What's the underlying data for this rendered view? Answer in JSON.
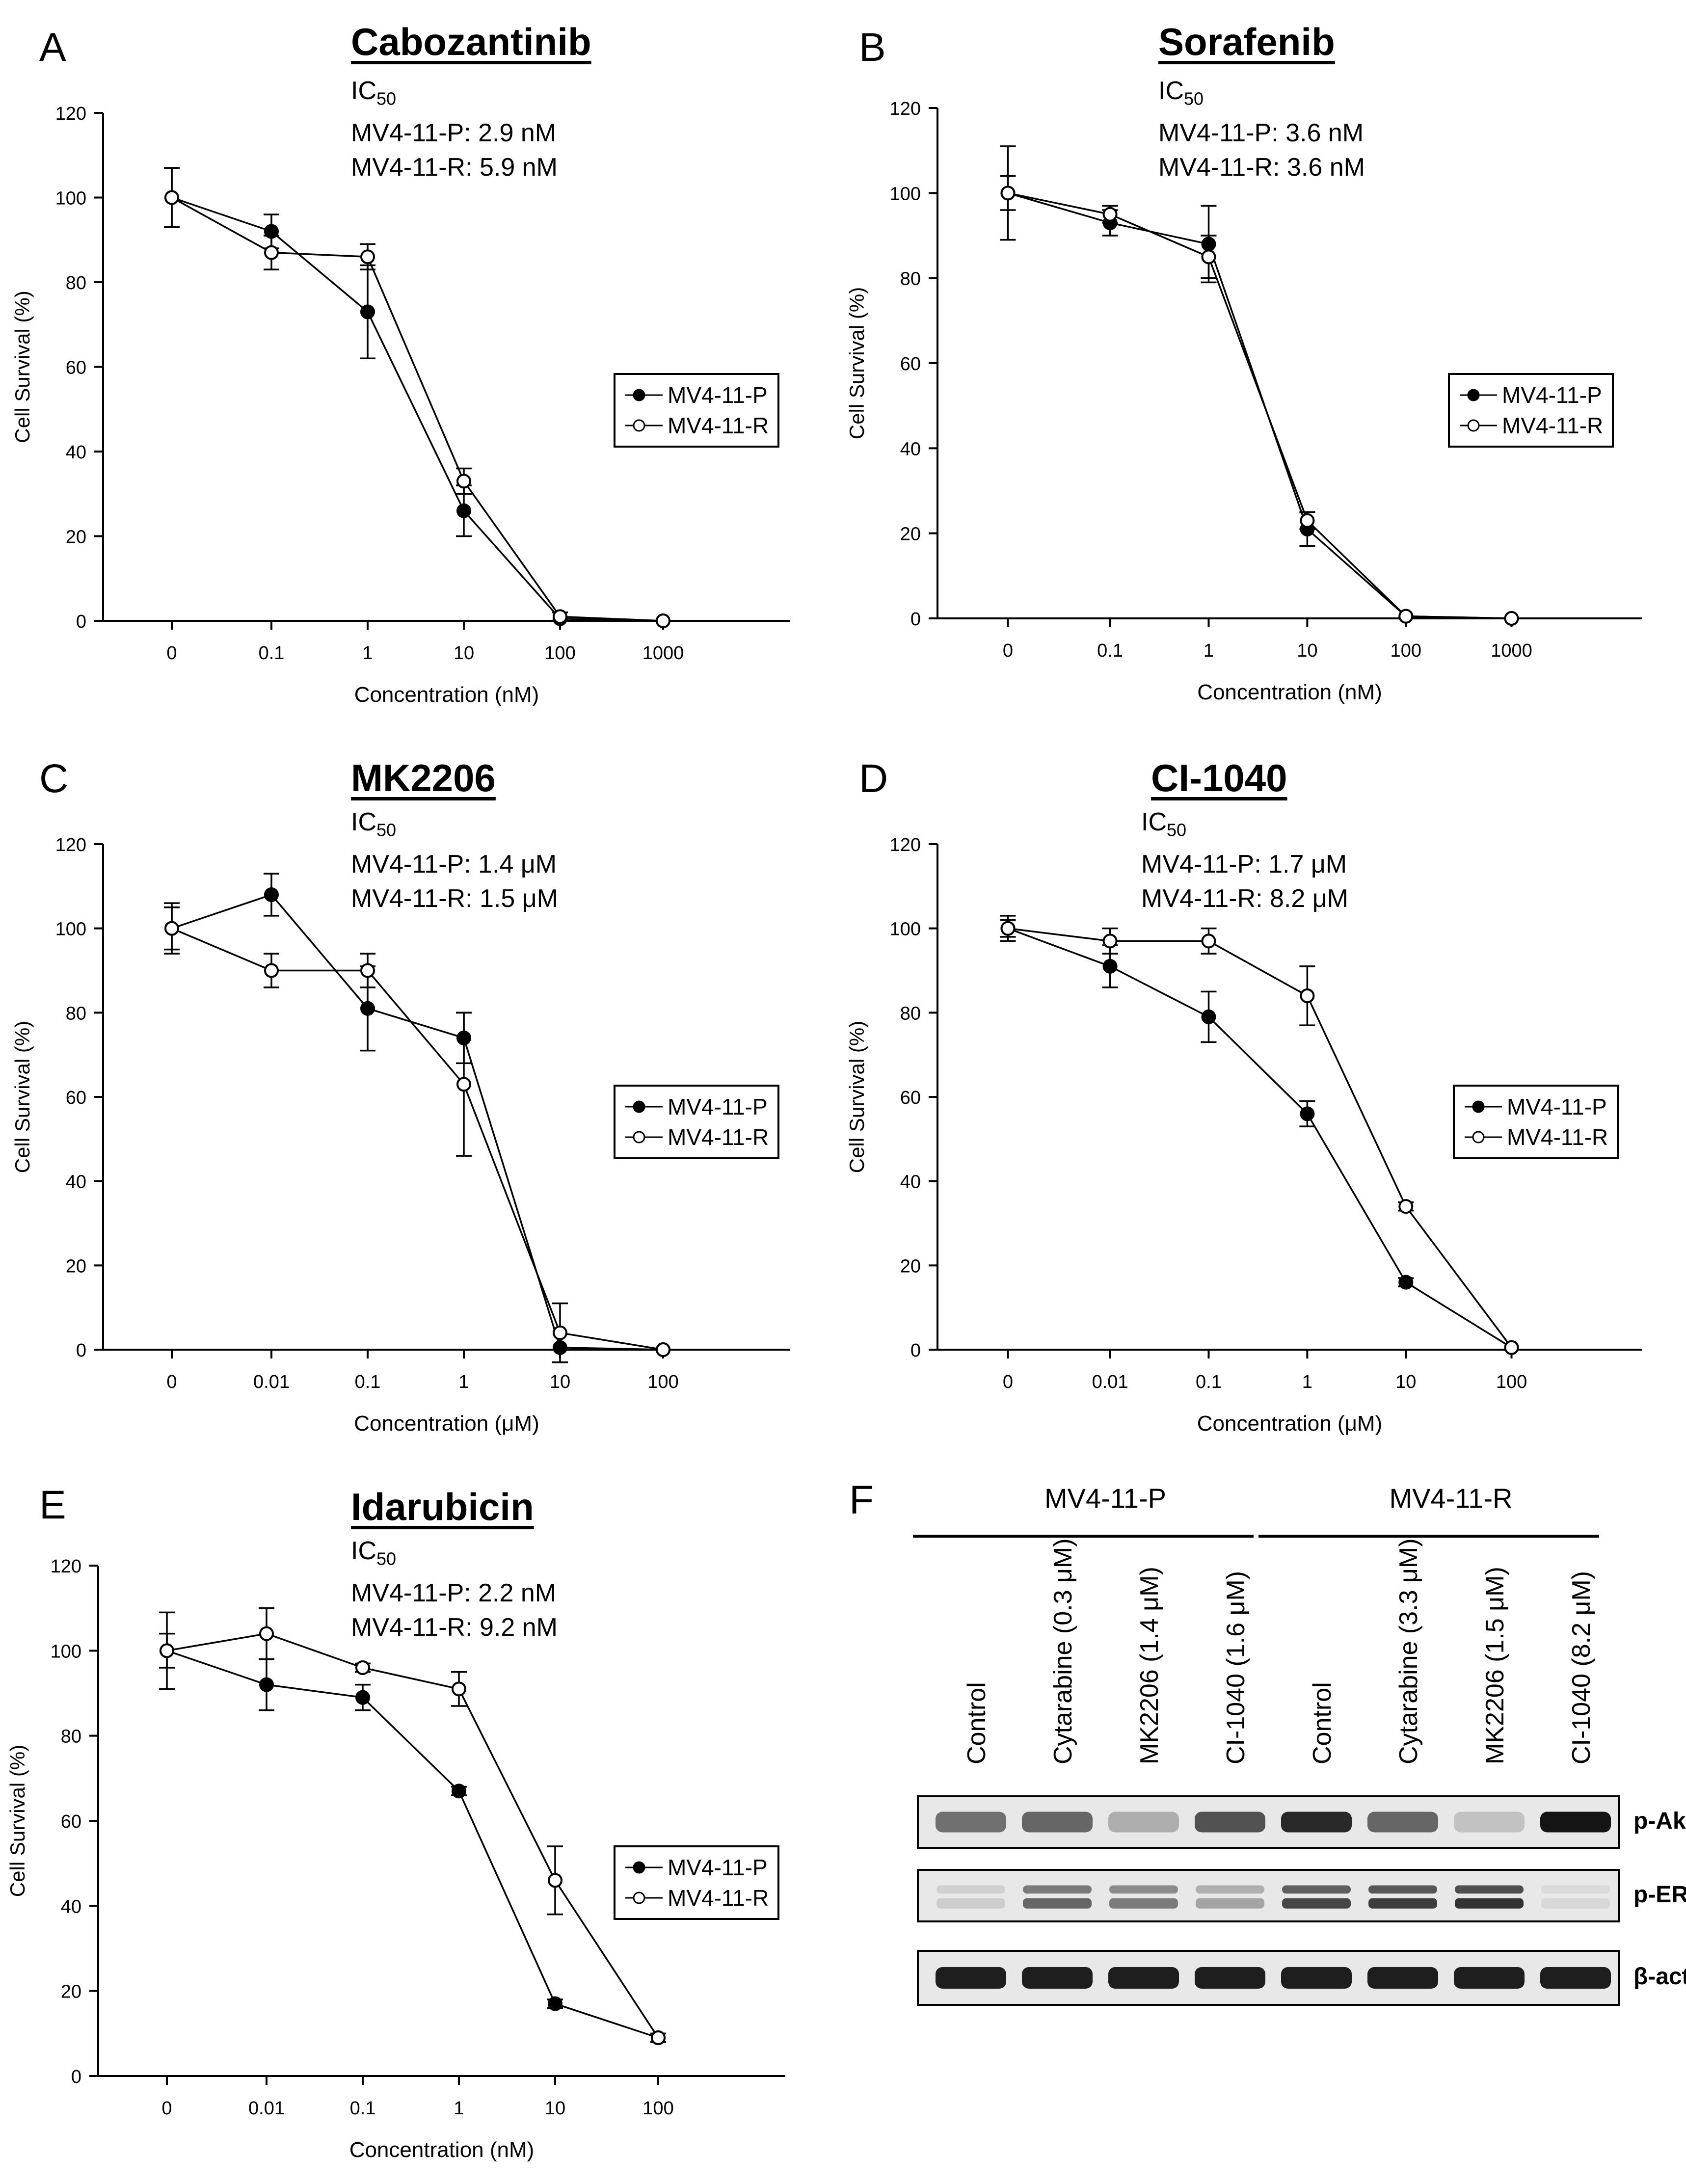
{
  "chart_data": [
    {
      "id": "A",
      "type": "line",
      "panel_label": "A",
      "title": "Cabozantinib",
      "ic50_label": "IC",
      "ic50_sub": "50",
      "ic50_lines": [
        "MV4-11-P: 2.9 nM",
        "MV4-11-R: 5.9 nM"
      ],
      "categories": [
        "0",
        "0.1",
        "1",
        "10",
        "100",
        "1000"
      ],
      "xlabel": "Concentration (nM)",
      "ylabel": "Cell Survival (%)",
      "ylim": [
        0,
        120
      ],
      "yticks": [
        "0",
        "20",
        "40",
        "60",
        "80",
        "100",
        "120"
      ],
      "series": [
        {
          "name": "MV4-11-P",
          "marker": "filled",
          "values": [
            100,
            92,
            73,
            26,
            0.5,
            0
          ],
          "errors": [
            7,
            4,
            11,
            6,
            0.5,
            0
          ]
        },
        {
          "name": "MV4-11-R",
          "marker": "open",
          "values": [
            100,
            87,
            86,
            33,
            1,
            0
          ],
          "errors": [
            7,
            4,
            3,
            3,
            1,
            0
          ]
        }
      ]
    },
    {
      "id": "B",
      "type": "line",
      "panel_label": "B",
      "title": "Sorafenib",
      "ic50_label": "IC",
      "ic50_sub": "50",
      "ic50_lines": [
        "MV4-11-P: 3.6 nM",
        "MV4-11-R: 3.6 nM"
      ],
      "categories": [
        "0",
        "0.1",
        "1",
        "10",
        "100",
        "1000"
      ],
      "xlabel": "Concentration (nM)",
      "ylabel": "Cell Survival (%)",
      "ylim": [
        0,
        120
      ],
      "yticks": [
        "0",
        "20",
        "40",
        "60",
        "80",
        "100",
        "120"
      ],
      "series": [
        {
          "name": "MV4-11-P",
          "marker": "filled",
          "values": [
            100,
            93,
            88,
            21,
            0.5,
            0
          ],
          "errors": [
            11,
            3,
            9,
            4,
            0.5,
            0
          ]
        },
        {
          "name": "MV4-11-R",
          "marker": "open",
          "values": [
            100,
            95,
            85,
            23,
            0.5,
            0
          ],
          "errors": [
            4,
            2,
            5,
            2,
            0.5,
            0
          ]
        }
      ]
    },
    {
      "id": "C",
      "type": "line",
      "panel_label": "C",
      "title": "MK2206",
      "ic50_label": "IC",
      "ic50_sub": "50",
      "ic50_lines": [
        "MV4-11-P: 1.4 μM",
        "MV4-11-R: 1.5 μM"
      ],
      "categories": [
        "0",
        "0.01",
        "0.1",
        "1",
        "10",
        "100"
      ],
      "xlabel": "Concentration (μM)",
      "ylabel": "Cell Survival (%)",
      "ylim": [
        0,
        120
      ],
      "yticks": [
        "0",
        "20",
        "40",
        "60",
        "80",
        "100",
        "120"
      ],
      "series": [
        {
          "name": "MV4-11-P",
          "marker": "filled",
          "values": [
            100,
            108,
            81,
            74,
            0.5,
            0
          ],
          "errors": [
            6,
            5,
            10,
            6,
            0.5,
            0
          ]
        },
        {
          "name": "MV4-11-R",
          "marker": "open",
          "values": [
            100,
            90,
            90,
            63,
            4,
            0
          ],
          "errors": [
            5,
            4,
            4,
            17,
            7,
            0
          ]
        }
      ]
    },
    {
      "id": "D",
      "type": "line",
      "panel_label": "D",
      "title": "CI-1040",
      "ic50_label": "IC",
      "ic50_sub": "50",
      "ic50_lines": [
        "MV4-11-P: 1.7 μM",
        "MV4-11-R: 8.2 μM"
      ],
      "categories": [
        "0",
        "0.01",
        "0.1",
        "1",
        "10",
        "100"
      ],
      "xlabel": "Concentration (μM)",
      "ylabel": "Cell Survival (%)",
      "ylim": [
        0,
        120
      ],
      "yticks": [
        "0",
        "20",
        "40",
        "60",
        "80",
        "100",
        "120"
      ],
      "series": [
        {
          "name": "MV4-11-P",
          "marker": "filled",
          "values": [
            100,
            91,
            79,
            56,
            16,
            0.5
          ],
          "errors": [
            3,
            5,
            6,
            3,
            1,
            0.5
          ]
        },
        {
          "name": "MV4-11-R",
          "marker": "open",
          "values": [
            100,
            97,
            97,
            84,
            34,
            0.5
          ],
          "errors": [
            2,
            3,
            3,
            7,
            1,
            0.5
          ]
        }
      ]
    },
    {
      "id": "E",
      "type": "line",
      "panel_label": "E",
      "title": "Idarubicin",
      "ic50_label": "IC",
      "ic50_sub": "50",
      "ic50_lines": [
        "MV4-11-P: 2.2 nM",
        "MV4-11-R: 9.2 nM"
      ],
      "categories": [
        "0",
        "0.01",
        "0.1",
        "1",
        "10",
        "100"
      ],
      "xlabel": "Concentration (nM)",
      "ylabel": "Cell Survival (%)",
      "ylim": [
        0,
        120
      ],
      "yticks": [
        "0",
        "20",
        "40",
        "60",
        "80",
        "100",
        "120"
      ],
      "series": [
        {
          "name": "MV4-11-P",
          "marker": "filled",
          "values": [
            100,
            92,
            89,
            67,
            17,
            9
          ],
          "errors": [
            4,
            6,
            3,
            1,
            1,
            1
          ]
        },
        {
          "name": "MV4-11-R",
          "marker": "open",
          "values": [
            100,
            104,
            96,
            91,
            46,
            9
          ],
          "errors": [
            9,
            6,
            1,
            4,
            8,
            1
          ]
        }
      ]
    }
  ],
  "blot": {
    "panel_label": "F",
    "groups": [
      "MV4-11-P",
      "MV4-11-R"
    ],
    "lanes": [
      "Control",
      "Cytarabine (0.3 μM)",
      "MK2206 (1.4 μM)",
      "CI-1040 (1.6 μM)",
      "Control",
      "Cytarabine (3.3 μM)",
      "MK2206 (1.5 μM)",
      "CI-1040 (8.2 μM)"
    ],
    "rows": [
      {
        "label": "p-Akt",
        "intensities": [
          0.55,
          0.6,
          0.25,
          0.7,
          0.9,
          0.6,
          0.15,
          1.0
        ]
      },
      {
        "label": "p-ERK",
        "intensities": [
          0.1,
          0.6,
          0.5,
          0.3,
          0.75,
          0.8,
          0.85,
          0.05
        ]
      },
      {
        "label": "β-actin",
        "intensities": [
          0.95,
          0.95,
          0.95,
          0.95,
          0.95,
          0.95,
          0.95,
          0.95
        ]
      }
    ]
  }
}
